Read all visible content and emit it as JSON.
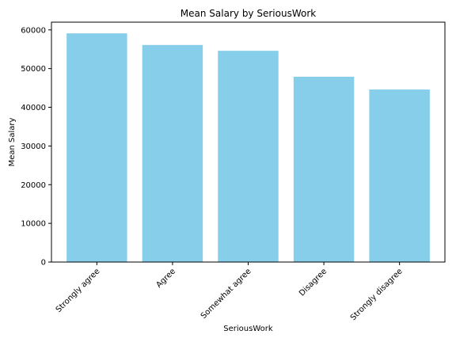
{
  "chart_data": {
    "type": "bar",
    "title": "Mean Salary by SeriousWork",
    "xlabel": "SeriousWork",
    "ylabel": "Mean Salary",
    "categories": [
      "Strongly agree",
      "Agree",
      "Somewhat agree",
      "Disagree",
      "Strongly disagree"
    ],
    "values": [
      59100,
      56100,
      54600,
      47900,
      44600
    ],
    "ylim": [
      0,
      62000
    ],
    "yticks": [
      0,
      10000,
      20000,
      30000,
      40000,
      50000,
      60000
    ],
    "bar_color": "#87ceeb",
    "grid": false,
    "legend": "none"
  }
}
